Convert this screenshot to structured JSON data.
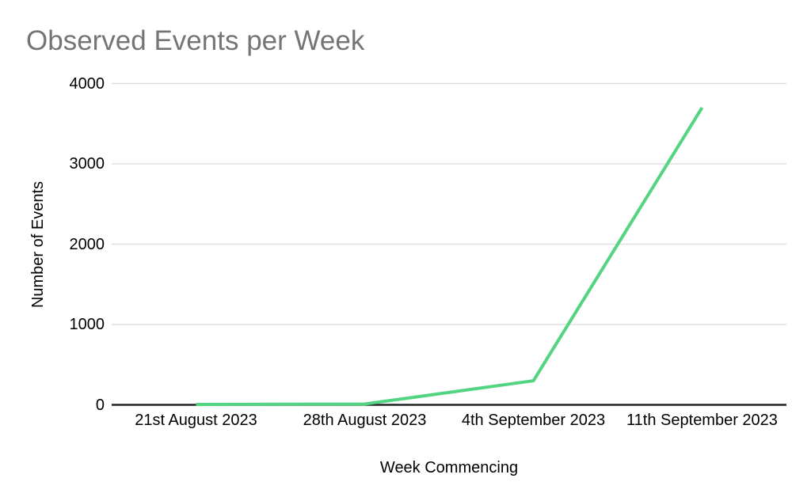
{
  "chart": {
    "title": "Observed Events per Week",
    "x_axis_title": "Week Commencing",
    "y_axis_title": "Number of Events",
    "colors": {
      "line": "#52d481",
      "grid": "#e0e0e0",
      "axis": "#212121",
      "title_text": "#757575",
      "tick_text": "#000000",
      "background": "#ffffff"
    }
  },
  "chart_data": {
    "type": "line",
    "categories": [
      "21st August 2023",
      "28th August 2023",
      "4th September 2023",
      "11th September 2023"
    ],
    "series": [
      {
        "name": "Observed Events",
        "values": [
          5,
          10,
          300,
          3700
        ]
      }
    ],
    "title": "Observed Events per Week",
    "xlabel": "Week Commencing",
    "ylabel": "Number of Events",
    "ylim": [
      0,
      4000
    ],
    "y_ticks": [
      0,
      1000,
      2000,
      3000,
      4000
    ],
    "grid": true,
    "legend_position": "none",
    "markers": false
  }
}
